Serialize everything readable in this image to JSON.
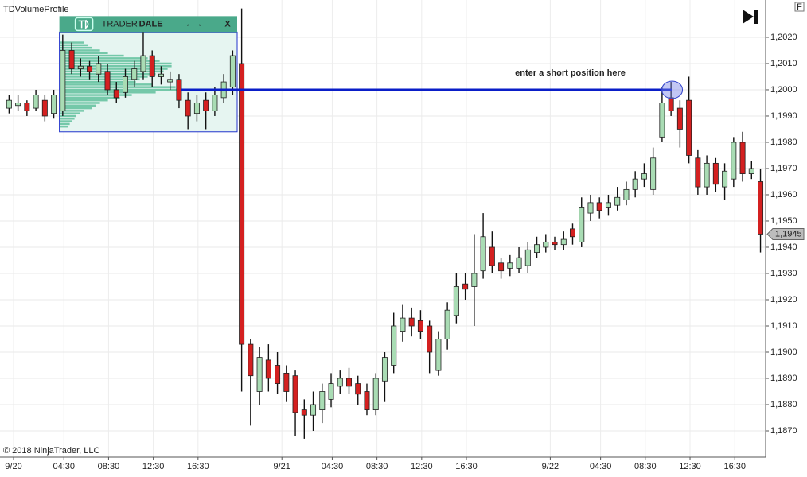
{
  "chart_data": {
    "type": "candlestick",
    "title": "TDVolumeProfile",
    "copyright": "© 2018 NinjaTrader, LLC",
    "annotation": "enter a short position here",
    "xlim": [
      -1.21,
      67.26
    ],
    "ylim": [
      1.186,
      1.20312
    ],
    "grid": true,
    "up_color": "#a9dcb4",
    "down_color": "#d42020",
    "xticks": [
      {
        "value": 0,
        "label": "9/20"
      },
      {
        "value": 4.5,
        "label": "04:30"
      },
      {
        "value": 8.5,
        "label": "08:30"
      },
      {
        "value": 12.5,
        "label": "12:30"
      },
      {
        "value": 16.5,
        "label": "16:30"
      },
      {
        "value": 24,
        "label": "9/21"
      },
      {
        "value": 28.5,
        "label": "04:30"
      },
      {
        "value": 32.5,
        "label": "08:30"
      },
      {
        "value": 36.5,
        "label": "12:30"
      },
      {
        "value": 40.5,
        "label": "16:30"
      },
      {
        "value": 48,
        "label": "9/22"
      },
      {
        "value": 52.5,
        "label": "04:30"
      },
      {
        "value": 56.5,
        "label": "08:30"
      },
      {
        "value": 60.5,
        "label": "12:30"
      },
      {
        "value": 64.5,
        "label": "16:30"
      }
    ],
    "yticks": [
      {
        "value": 1.187,
        "label": "1,1870"
      },
      {
        "value": 1.188,
        "label": "1,1880"
      },
      {
        "value": 1.189,
        "label": "1,1890"
      },
      {
        "value": 1.19,
        "label": "1,1900"
      },
      {
        "value": 1.191,
        "label": "1,1910"
      },
      {
        "value": 1.192,
        "label": "1,1920"
      },
      {
        "value": 1.193,
        "label": "1,1930"
      },
      {
        "value": 1.194,
        "label": "1,1940"
      },
      {
        "value": 1.195,
        "label": "1,1950"
      },
      {
        "value": 1.196,
        "label": "1,1960"
      },
      {
        "value": 1.197,
        "label": "1,1970"
      },
      {
        "value": 1.198,
        "label": "1,1980"
      },
      {
        "value": 1.199,
        "label": "1,1990"
      },
      {
        "value": 1.2,
        "label": "1,2000"
      },
      {
        "value": 1.201,
        "label": "1,2010"
      },
      {
        "value": 1.202,
        "label": "1,2020"
      }
    ],
    "last_price": {
      "value": 1.1945,
      "label": "1,1945"
    },
    "level_line": {
      "value": 1.2,
      "x_start": 15.0,
      "x_end": 58.9,
      "color": "#0a1ec8"
    },
    "highlight": {
      "x": 58.9,
      "y": 1.2
    },
    "x": [
      -0.4,
      0.4,
      1.2,
      2,
      2.8,
      3.6,
      4.4,
      5.2,
      6,
      6.8,
      7.6,
      8.4,
      9.2,
      10,
      10.8,
      11.6,
      12.4,
      13.2,
      14,
      14.8,
      15.6,
      16.4,
      17.2,
      18,
      18.8,
      19.6,
      20.4,
      21.2,
      22,
      22.8,
      23.6,
      24.4,
      25.2,
      26,
      26.8,
      27.6,
      28.4,
      29.2,
      30,
      30.8,
      31.6,
      32.4,
      33.2,
      34,
      34.8,
      35.6,
      36.4,
      37.2,
      38,
      38.8,
      39.6,
      40.4,
      41.2,
      42,
      42.8,
      43.6,
      44.4,
      45.2,
      46,
      46.8,
      47.6,
      48.4,
      49.2,
      50,
      50.8,
      51.6,
      52.4,
      53.2,
      54,
      54.8,
      55.6,
      56.4,
      57.2,
      58,
      58.8,
      59.6,
      60.4,
      61.2,
      62,
      62.8,
      63.6,
      64.4,
      65.2,
      66,
      66.8
    ],
    "open": [
      1.1993,
      1.1994,
      1.1995,
      1.1993,
      1.1996,
      1.1991,
      1.1992,
      1.2015,
      1.2008,
      1.2009,
      1.2006,
      1.2007,
      1.2,
      1.1999,
      1.2004,
      1.2007,
      1.2013,
      1.2005,
      1.2003,
      1.2004,
      1.1996,
      1.1991,
      1.1996,
      1.1992,
      1.1997,
      1.2001,
      1.201,
      1.1903,
      1.1885,
      1.1897,
      1.1895,
      1.1892,
      1.1891,
      1.1878,
      1.1876,
      1.1878,
      1.1882,
      1.1887,
      1.189,
      1.1888,
      1.1885,
      1.1878,
      1.1889,
      1.1895,
      1.1908,
      1.1913,
      1.1912,
      1.191,
      1.1893,
      1.1905,
      1.1914,
      1.1926,
      1.1925,
      1.1931,
      1.194,
      1.1934,
      1.1932,
      1.1932,
      1.1933,
      1.1938,
      1.194,
      1.1942,
      1.1941,
      1.1947,
      1.1942,
      1.1953,
      1.1957,
      1.1955,
      1.1956,
      1.1958,
      1.1962,
      1.1966,
      1.1962,
      1.1982,
      1.1997,
      1.1993,
      1.1996,
      1.1974,
      1.1963,
      1.1972,
      1.1963,
      1.1966,
      1.198,
      1.1968,
      1.1965
    ],
    "high": [
      1.1998,
      1.1998,
      1.1996,
      1.2,
      1.1998,
      1.2,
      1.2021,
      1.2018,
      1.2012,
      1.2011,
      1.2013,
      1.201,
      1.2003,
      1.2008,
      1.2011,
      1.2022,
      1.2015,
      1.2009,
      1.2007,
      1.2006,
      1.1999,
      1.1998,
      1.1999,
      1.2001,
      1.2006,
      1.2015,
      1.2031,
      1.1905,
      1.1902,
      1.1903,
      1.19,
      1.1895,
      1.1893,
      1.1882,
      1.1885,
      1.1888,
      1.1892,
      1.1893,
      1.1894,
      1.1891,
      1.1888,
      1.1892,
      1.19,
      1.1915,
      1.1918,
      1.1917,
      1.1916,
      1.1912,
      1.1908,
      1.1919,
      1.193,
      1.193,
      1.1945,
      1.1953,
      1.1946,
      1.1936,
      1.1937,
      1.194,
      1.1942,
      1.1944,
      1.1945,
      1.1944,
      1.1946,
      1.1949,
      1.1959,
      1.196,
      1.1959,
      1.196,
      1.1963,
      1.1965,
      1.1969,
      1.1972,
      1.1978,
      1.2001,
      1.2003,
      1.1996,
      1.2005,
      1.1977,
      1.1975,
      1.1974,
      1.1972,
      1.1982,
      1.1984,
      1.1973,
      1.197
    ],
    "low": [
      1.1991,
      1.1992,
      1.199,
      1.1992,
      1.1988,
      1.1989,
      1.199,
      1.2006,
      1.2005,
      1.2004,
      1.2003,
      1.1998,
      1.1995,
      1.1997,
      1.2001,
      1.2004,
      1.2001,
      1.2002,
      1.2,
      1.1993,
      1.1985,
      1.1988,
      1.1985,
      1.199,
      1.1995,
      1.1998,
      1.1885,
      1.1872,
      1.188,
      1.1885,
      1.1884,
      1.1881,
      1.1868,
      1.1867,
      1.187,
      1.1873,
      1.1879,
      1.1884,
      1.1884,
      1.188,
      1.1876,
      1.1876,
      1.1881,
      1.1892,
      1.1904,
      1.1906,
      1.1905,
      1.1892,
      1.1891,
      1.1901,
      1.1911,
      1.192,
      1.191,
      1.1928,
      1.193,
      1.1928,
      1.1929,
      1.193,
      1.193,
      1.1936,
      1.1938,
      1.1939,
      1.1939,
      1.1941,
      1.194,
      1.195,
      1.1951,
      1.1952,
      1.1954,
      1.1956,
      1.1959,
      1.1963,
      1.196,
      1.198,
      1.199,
      1.1978,
      1.1972,
      1.196,
      1.196,
      1.1961,
      1.1958,
      1.1963,
      1.1965,
      1.1966,
      1.1938
    ],
    "close": [
      1.1996,
      1.1995,
      1.1992,
      1.1998,
      1.199,
      1.1998,
      1.2015,
      1.2008,
      1.2009,
      1.2007,
      1.201,
      1.2,
      1.1997,
      1.2005,
      1.2008,
      1.2013,
      1.2005,
      1.2006,
      1.2004,
      1.1996,
      1.199,
      1.1995,
      1.1992,
      1.1998,
      1.2003,
      1.2013,
      1.1903,
      1.1891,
      1.1898,
      1.189,
      1.1888,
      1.1885,
      1.1877,
      1.1876,
      1.188,
      1.1885,
      1.1888,
      1.189,
      1.1887,
      1.1884,
      1.1878,
      1.189,
      1.1898,
      1.191,
      1.1913,
      1.191,
      1.1908,
      1.19,
      1.1905,
      1.1916,
      1.1925,
      1.1924,
      1.193,
      1.1944,
      1.1933,
      1.1931,
      1.1934,
      1.1936,
      1.1939,
      1.1941,
      1.1942,
      1.1941,
      1.1943,
      1.1944,
      1.1955,
      1.1957,
      1.1954,
      1.1957,
      1.1959,
      1.1962,
      1.1966,
      1.1968,
      1.1974,
      1.1995,
      1.1992,
      1.1985,
      1.1975,
      1.1963,
      1.1972,
      1.1964,
      1.1969,
      1.198,
      1.1968,
      1.197,
      1.1945
    ],
    "volume_profile": {
      "header": {
        "brand_left": "TRADER",
        "brand_right": "DALE",
        "arrows": "←→",
        "close": "X"
      },
      "hours": [
        4.1,
        20.0
      ],
      "prices": [
        1.1984,
        1.2022
      ],
      "color": "#5fbf9c",
      "price_levels": [
        1.2018,
        1.2017,
        1.2016,
        1.2015,
        1.2014,
        1.2013,
        1.2012,
        1.2011,
        1.201,
        1.2009,
        1.2008,
        1.2007,
        1.2006,
        1.2005,
        1.2004,
        1.2003,
        1.2002,
        1.2001,
        1.2,
        1.1999,
        1.1998,
        1.1997,
        1.1996,
        1.1995,
        1.1994,
        1.1993,
        1.1992,
        1.1991,
        1.199,
        1.1989,
        1.1988,
        1.1987,
        1.1986
      ],
      "volumes": [
        30,
        35,
        40,
        50,
        60,
        80,
        110,
        125,
        140,
        140,
        135,
        130,
        120,
        110,
        100,
        95,
        115,
        145,
        150,
        120,
        90,
        75,
        60,
        50,
        45,
        40,
        30,
        25,
        20,
        18,
        15,
        12,
        10
      ]
    }
  }
}
